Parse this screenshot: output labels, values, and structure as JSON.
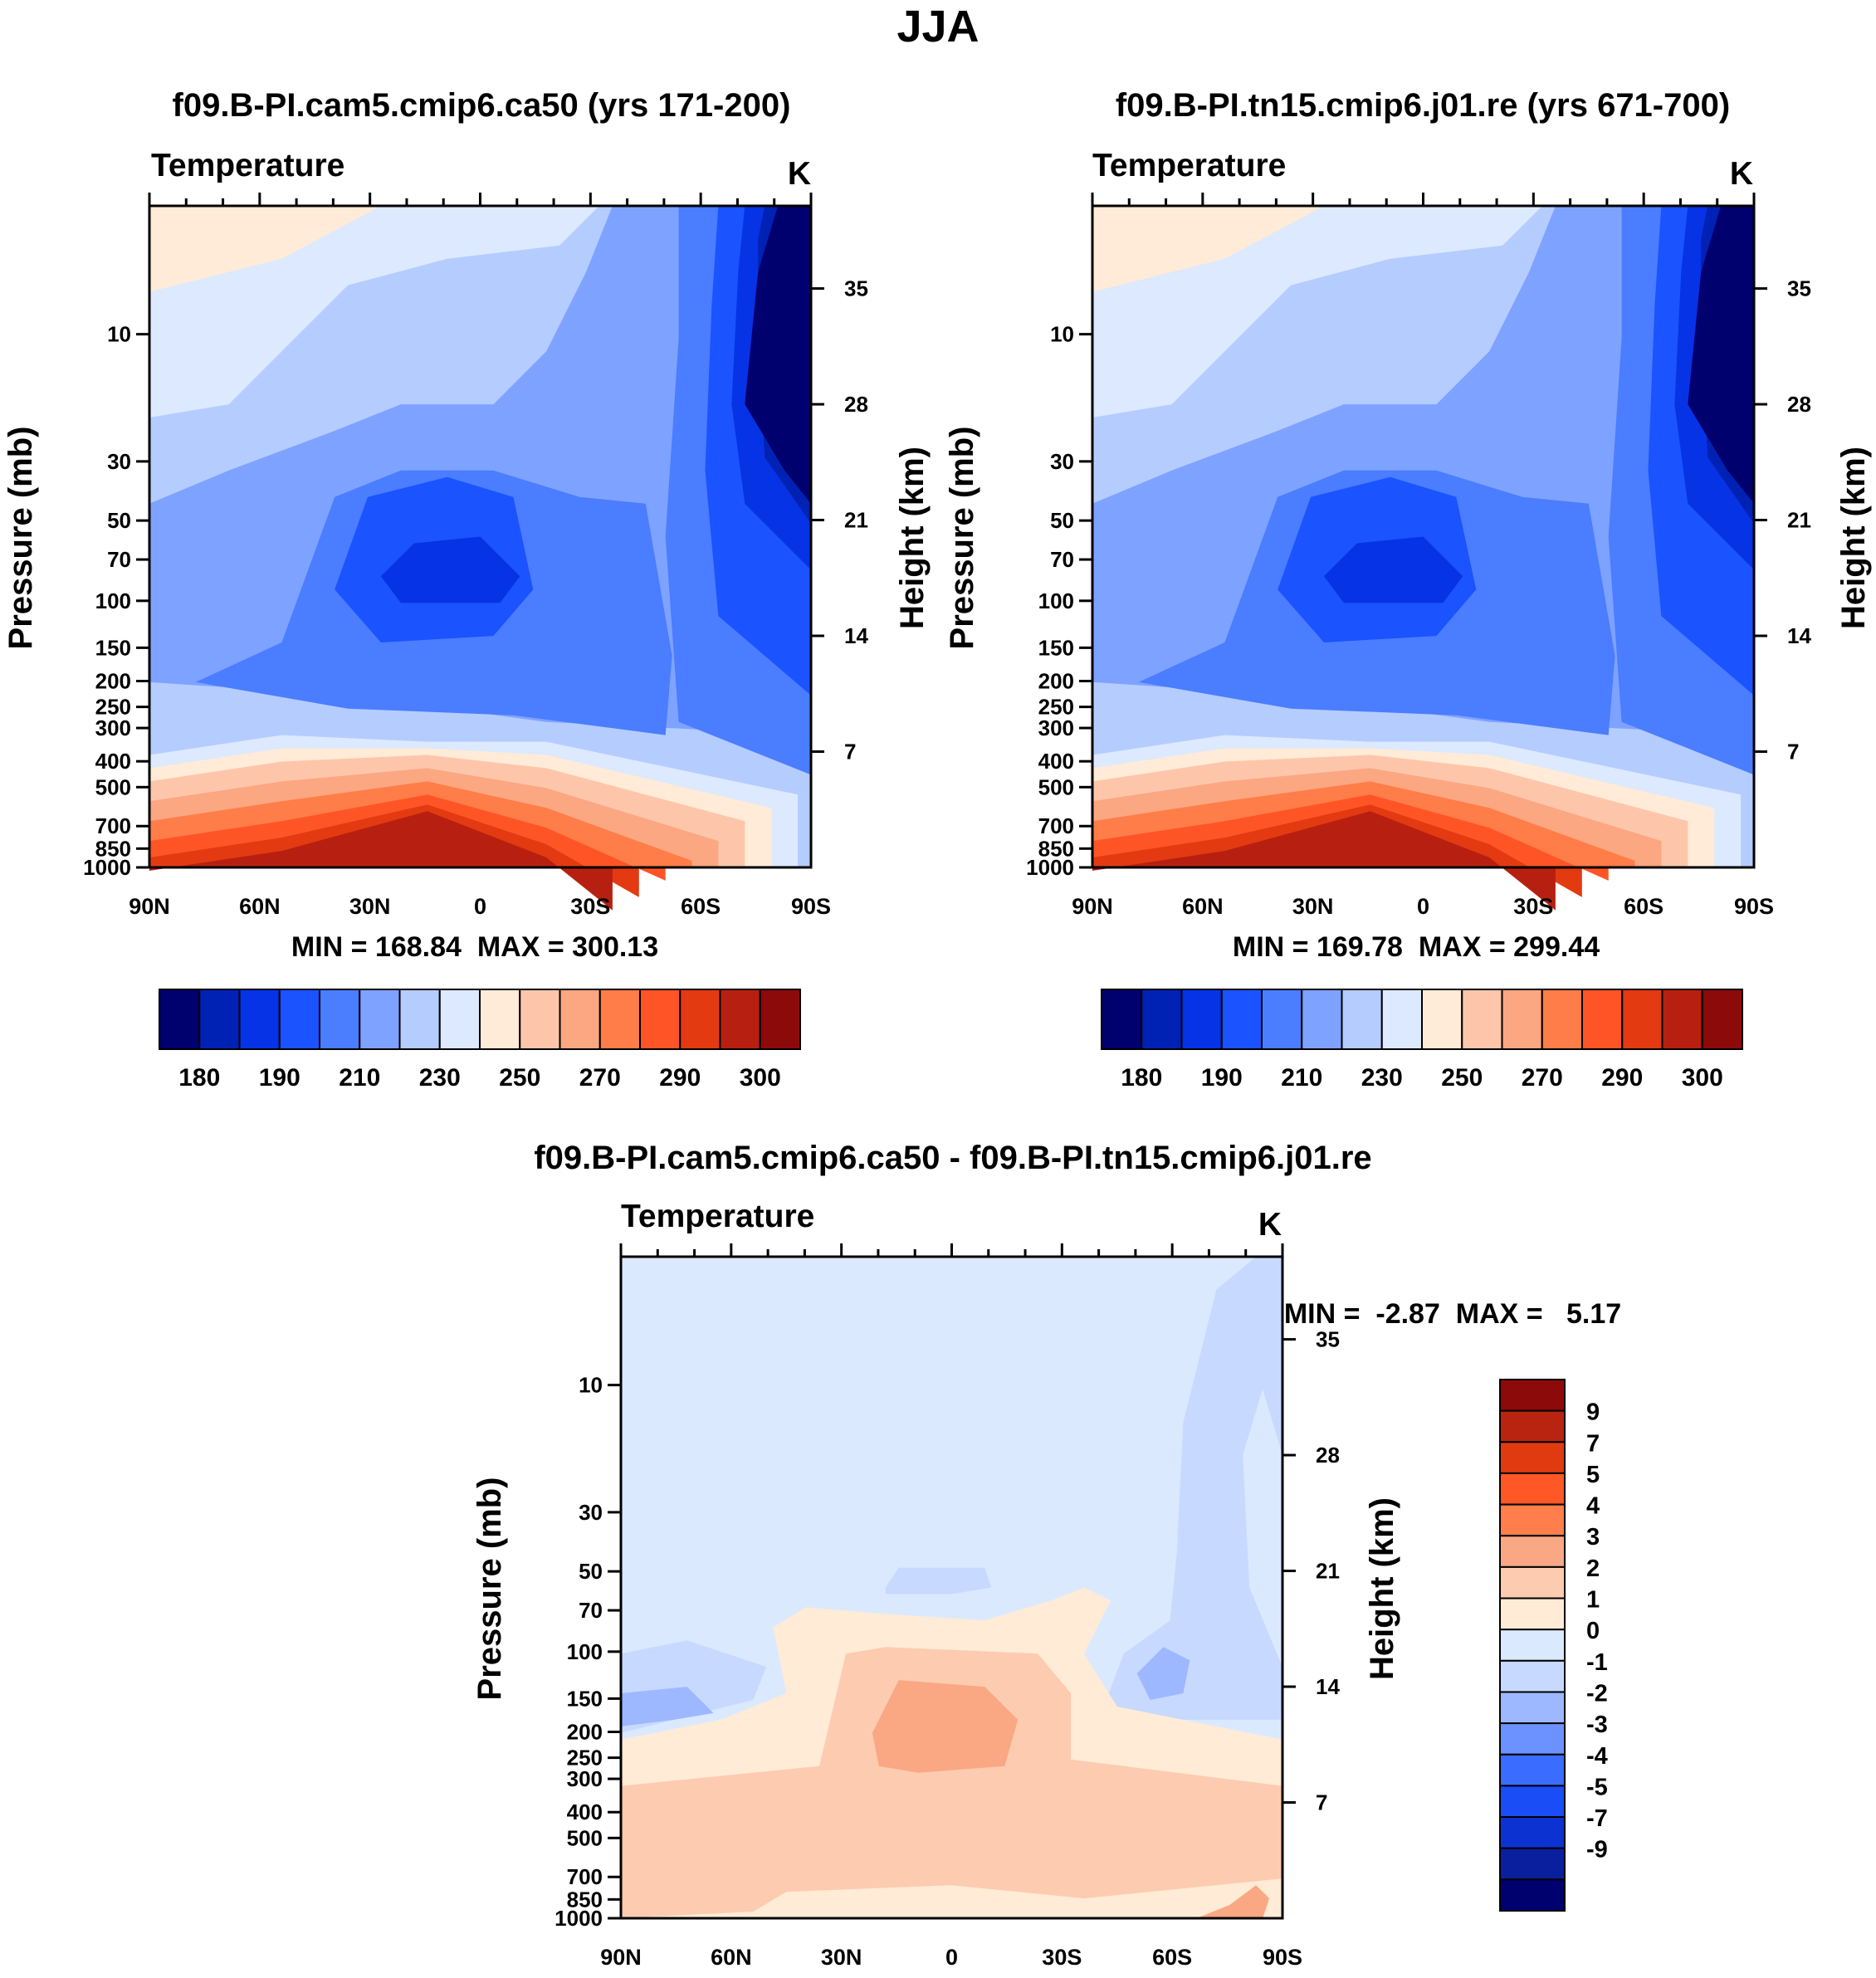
{
  "figure_title": "JJA",
  "colors": {
    "abs_palette": [
      "#00006e",
      "#0022b4",
      "#0633e6",
      "#1a53ff",
      "#4a7dff",
      "#7ea2ff",
      "#b5ccff",
      "#dce9ff",
      "#ffebd7",
      "#fdc6ab",
      "#fba782",
      "#ff7d48",
      "#ff5526",
      "#e33a12",
      "#b72010",
      "#8c0a0a"
    ],
    "diff_palette": [
      "#00006e",
      "#0a1f9e",
      "#0c33d2",
      "#1a4df5",
      "#3a6cff",
      "#6c92ff",
      "#9db8ff",
      "#c7d9ff",
      "#dbe9ff",
      "#ffebd6",
      "#fdcbb0",
      "#f9a883",
      "#ff7e4b",
      "#ff5726",
      "#e03a10",
      "#b82410",
      "#8c0a0a"
    ]
  },
  "chart_data": [
    {
      "type": "contour",
      "title": "f09.B-PI.cam5.cmip6.ca50 (yrs 171-200)",
      "variable": "Temperature",
      "units": "K",
      "ylabel": "Pressure (mb)",
      "ylabel_right": "Height (km)",
      "x_ticks": [
        "90N",
        "60N",
        "30N",
        "0",
        "30S",
        "60S",
        "90S"
      ],
      "y_ticks": [
        "10",
        "30",
        "50",
        "70",
        "100",
        "150",
        "200",
        "250",
        "300",
        "400",
        "500",
        "700",
        "850",
        "1000"
      ],
      "y_right_ticks": [
        "35",
        "28",
        "21",
        "14",
        "7"
      ],
      "min": 168.84,
      "max": 300.13,
      "stats": "MIN = 168.84  MAX = 300.13",
      "colorbar_labels": [
        "180",
        "190",
        "210",
        "230",
        "250",
        "270",
        "290",
        "300"
      ]
    },
    {
      "type": "contour",
      "title": "f09.B-PI.tn15.cmip6.j01.re (yrs 671-700)",
      "variable": "Temperature",
      "units": "K",
      "ylabel": "Pressure (mb)",
      "ylabel_right": "Height (km)",
      "x_ticks": [
        "90N",
        "60N",
        "30N",
        "0",
        "30S",
        "60S",
        "90S"
      ],
      "y_ticks": [
        "10",
        "30",
        "50",
        "70",
        "100",
        "150",
        "200",
        "250",
        "300",
        "400",
        "500",
        "700",
        "850",
        "1000"
      ],
      "y_right_ticks": [
        "35",
        "28",
        "21",
        "14",
        "7"
      ],
      "min": 169.78,
      "max": 299.44,
      "stats": "MIN = 169.78  MAX = 299.44",
      "colorbar_labels": [
        "180",
        "190",
        "210",
        "230",
        "250",
        "270",
        "290",
        "300"
      ]
    },
    {
      "type": "contour",
      "title": "f09.B-PI.cam5.cmip6.ca50 - f09.B-PI.tn15.cmip6.j01.re",
      "variable": "Temperature",
      "units": "K",
      "ylabel": "Pressure (mb)",
      "ylabel_right": "Height (km)",
      "x_ticks": [
        "90N",
        "60N",
        "30N",
        "0",
        "30S",
        "60S",
        "90S"
      ],
      "y_ticks": [
        "10",
        "30",
        "50",
        "70",
        "100",
        "150",
        "200",
        "250",
        "300",
        "400",
        "500",
        "700",
        "850",
        "1000"
      ],
      "y_right_ticks": [
        "35",
        "28",
        "21",
        "14",
        "7"
      ],
      "min": -2.87,
      "max": 5.17,
      "stats": "MIN =  -2.87  MAX =   5.17",
      "colorbar_labels": [
        "9",
        "7",
        "5",
        "4",
        "3",
        "2",
        "1",
        "0",
        "-1",
        "-2",
        "-3",
        "-4",
        "-5",
        "-7",
        "-9"
      ]
    }
  ]
}
